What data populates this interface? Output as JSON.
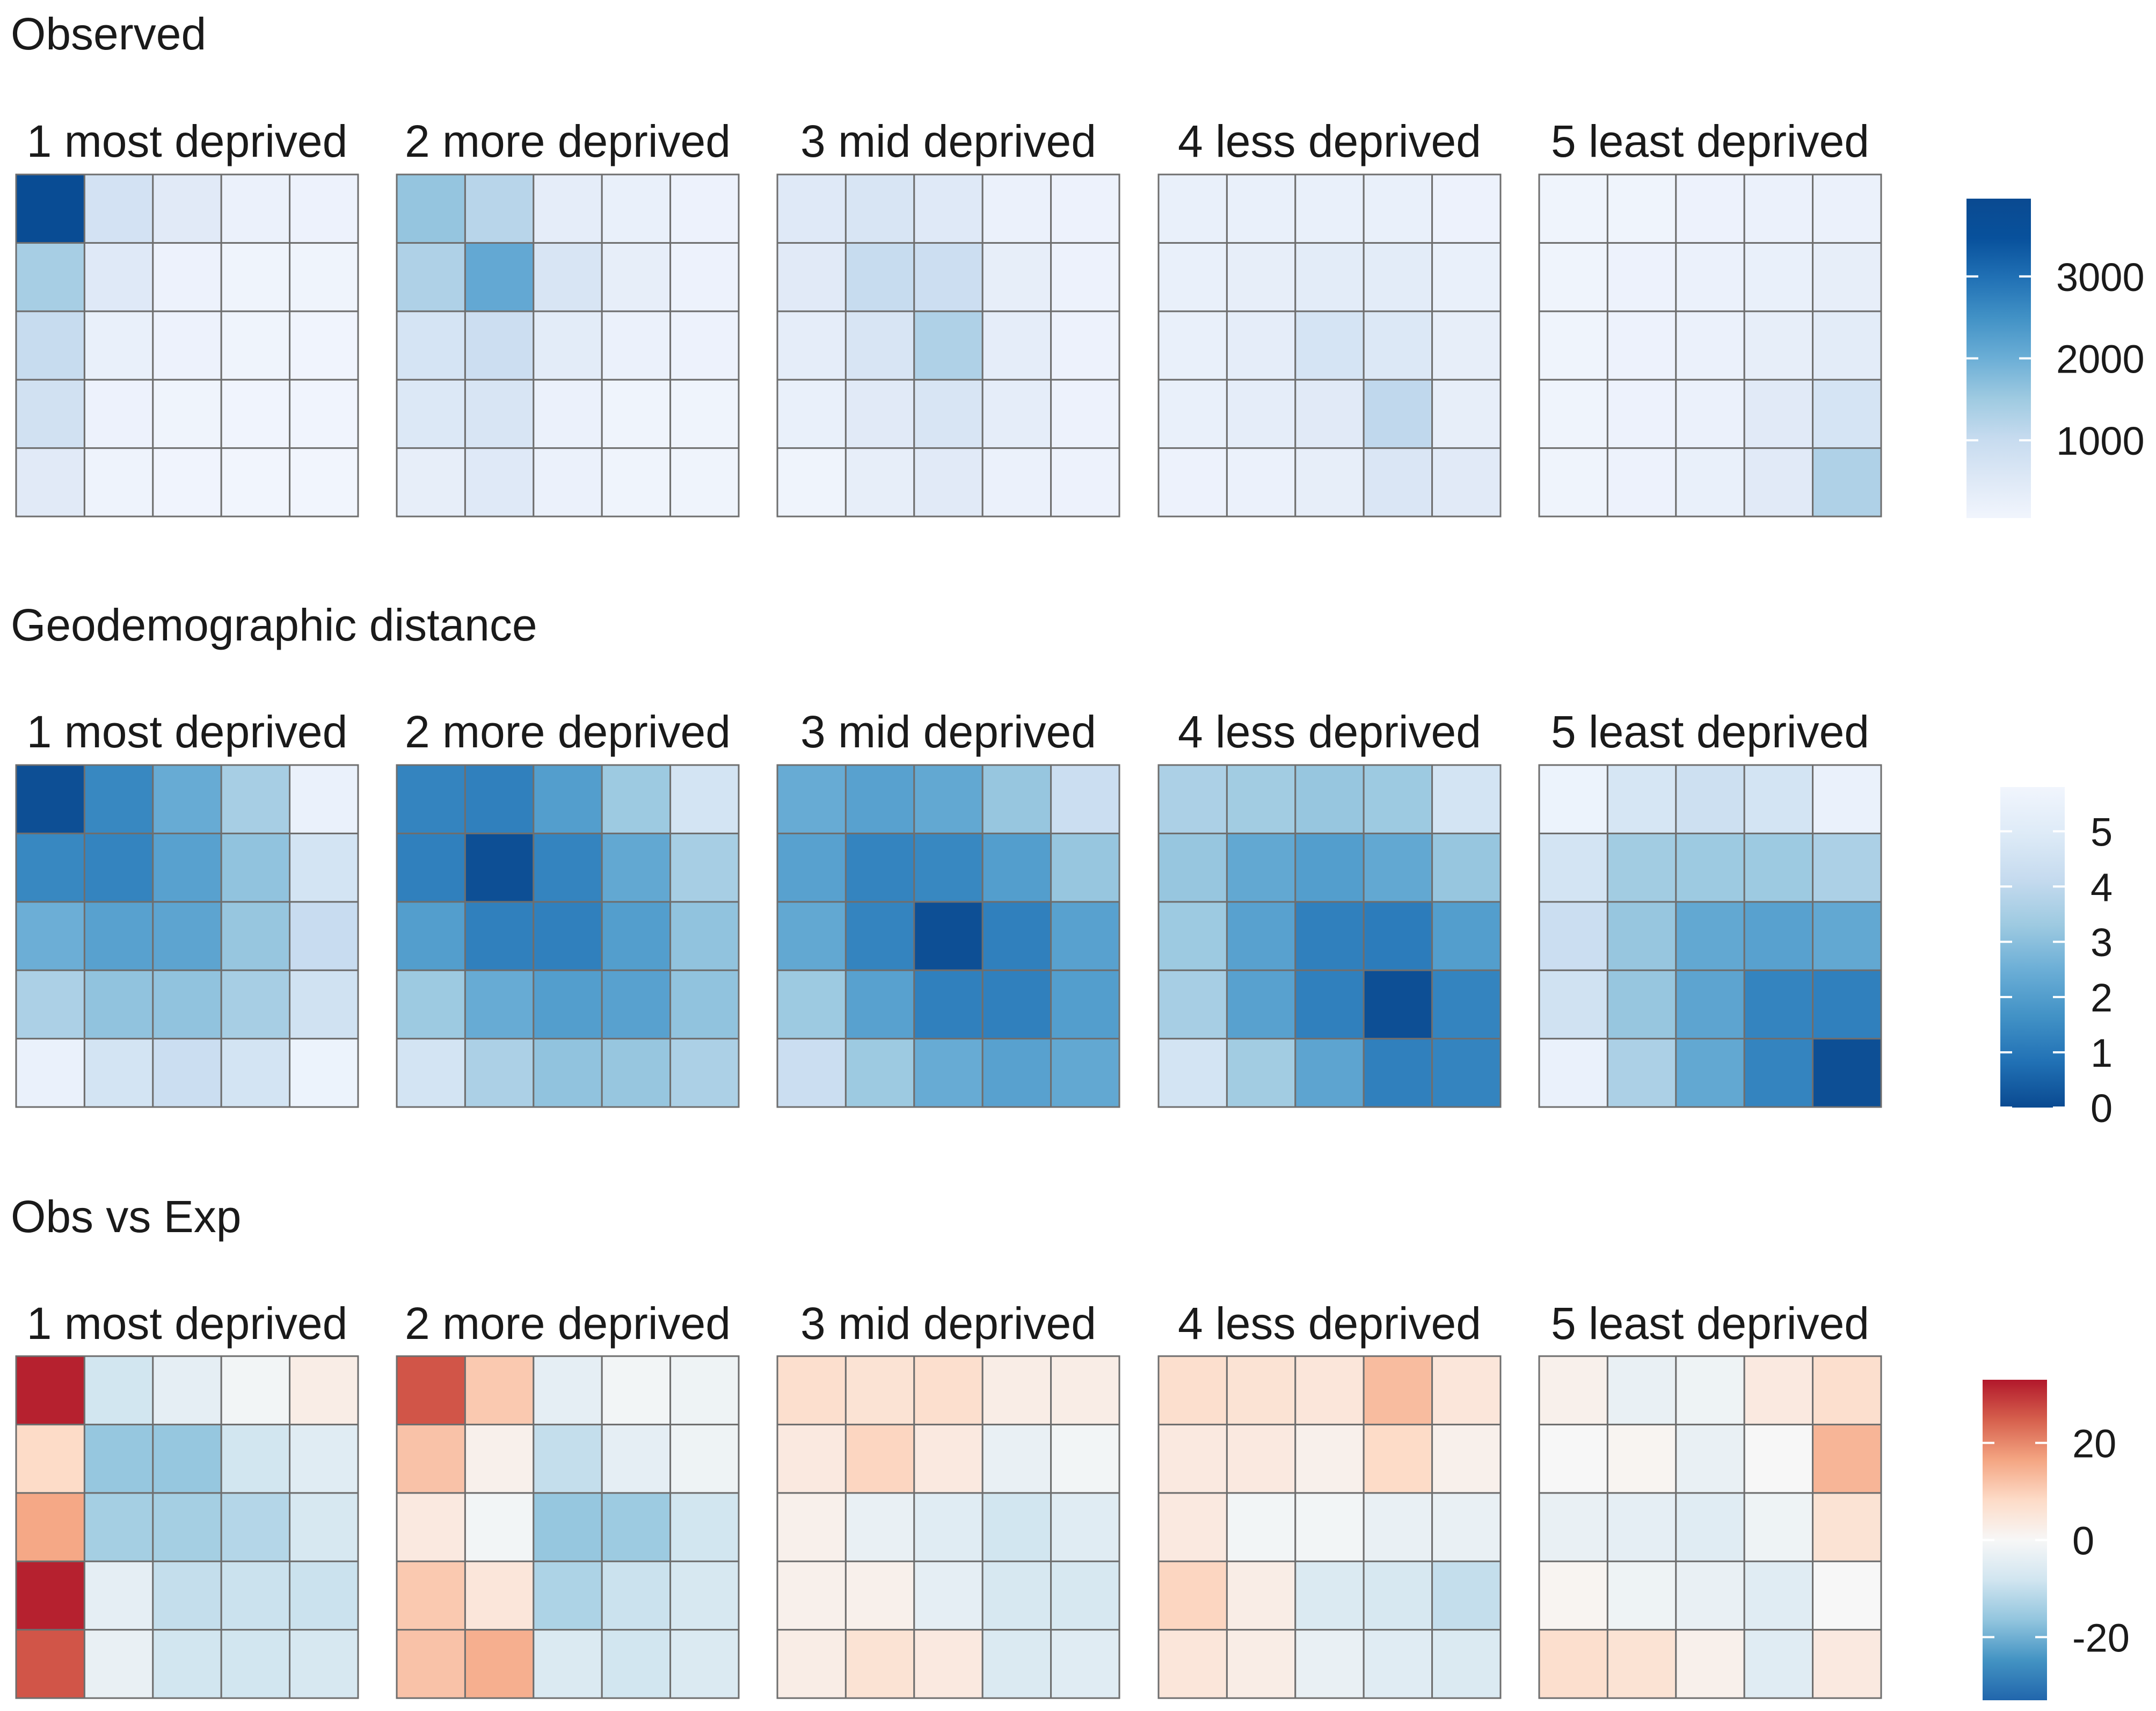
{
  "figure": {
    "rows": [
      {
        "title": "Observed",
        "legend": {
          "ticks": [
            1000,
            2000,
            3000
          ],
          "min": 50,
          "max": 3950,
          "colors": [
            "#F1F5FD",
            "#DDE8F6",
            "#C6DBEF",
            "#9ECAE1",
            "#6BAED6",
            "#4292C6",
            "#2171B5",
            "#08519C",
            "#0A4A91"
          ]
        }
      },
      {
        "title": "Geodemographic distance",
        "legend": {
          "ticks": [
            0,
            1,
            2,
            3,
            4,
            5
          ],
          "min": 0,
          "max": 5.8,
          "colors": [
            "#0A4A91",
            "#2171B5",
            "#4292C6",
            "#6BAED6",
            "#9ECAE1",
            "#C6DBEF",
            "#DEEBF7",
            "#F1F5FD"
          ]
        }
      },
      {
        "title": "Obs vs Exp",
        "legend": {
          "ticks": [
            -20,
            0,
            20
          ],
          "min": -33,
          "max": 33,
          "colors": [
            "#2166AC",
            "#4393C3",
            "#92C5DE",
            "#D1E5F0",
            "#F7F7F7",
            "#FDDBC7",
            "#F4A582",
            "#D6604D",
            "#B2182B"
          ]
        }
      }
    ]
  },
  "chart_data": [
    {
      "type": "heatmap",
      "title": "Observed",
      "facets": [
        "1 most deprived",
        "2 more deprived",
        "3 mid deprived",
        "4 less deprived",
        "5 least deprived"
      ],
      "legend_ticks": [
        1000,
        2000,
        3000
      ],
      "values": [
        [
          [
            450,
            120,
            80,
            60,
            60
          ],
          [
            800,
            150,
            100,
            80,
            70
          ],
          [
            1000,
            250,
            150,
            100,
            70
          ],
          [
            1400,
            500,
            150,
            100,
            100
          ],
          [
            3800,
            750,
            450,
            200,
            150
          ]
        ],
        [
          [
            300,
            500,
            200,
            100,
            100
          ],
          [
            550,
            650,
            200,
            100,
            100
          ],
          [
            700,
            900,
            400,
            200,
            150
          ],
          [
            1300,
            2100,
            650,
            300,
            150
          ],
          [
            1600,
            1200,
            350,
            250,
            150
          ]
        ],
        [
          [
            100,
            300,
            450,
            200,
            150
          ],
          [
            250,
            450,
            650,
            350,
            150
          ],
          [
            350,
            650,
            1300,
            350,
            150
          ],
          [
            450,
            1000,
            900,
            300,
            150
          ],
          [
            500,
            650,
            500,
            200,
            150
          ]
        ],
        [
          [
            150,
            200,
            300,
            600,
            450
          ],
          [
            250,
            350,
            450,
            1100,
            300
          ],
          [
            250,
            350,
            700,
            550,
            300
          ],
          [
            250,
            300,
            400,
            400,
            250
          ],
          [
            250,
            250,
            250,
            250,
            150
          ]
        ],
        [
          [
            100,
            150,
            250,
            450,
            1300
          ],
          [
            100,
            150,
            200,
            450,
            700
          ],
          [
            100,
            150,
            200,
            300,
            400
          ],
          [
            100,
            150,
            200,
            250,
            300
          ],
          [
            100,
            100,
            150,
            200,
            200
          ]
        ]
      ]
    },
    {
      "type": "heatmap",
      "title": "Geodemographic distance",
      "facets": [
        "1 most deprived",
        "2 more deprived",
        "3 mid deprived",
        "4 less deprived",
        "5 least deprived"
      ],
      "legend_ticks": [
        0,
        1,
        2,
        3,
        4,
        5
      ],
      "values": [
        [
          [
            5.5,
            4.6,
            4.3,
            4.6,
            5.6
          ],
          [
            3.6,
            3.1,
            3.1,
            3.5,
            4.5
          ],
          [
            2.5,
            2.1,
            2.2,
            3.2,
            4.2
          ],
          [
            1.4,
            1.3,
            2.1,
            3.1,
            4.6
          ],
          [
            0.1,
            1.4,
            2.4,
            3.5,
            5.5
          ]
        ],
        [
          [
            4.6,
            3.6,
            3.1,
            3.2,
            3.6
          ],
          [
            3.3,
            2.4,
            2.0,
            2.1,
            3.1
          ],
          [
            2.0,
            1.2,
            1.2,
            2.0,
            3.1
          ],
          [
            1.2,
            0.1,
            1.3,
            2.3,
            3.5
          ],
          [
            1.3,
            1.2,
            2.0,
            3.3,
            4.6
          ]
        ],
        [
          [
            4.3,
            3.3,
            2.4,
            2.1,
            2.3
          ],
          [
            3.3,
            2.1,
            1.2,
            1.2,
            2.0
          ],
          [
            2.3,
            1.3,
            0.1,
            1.2,
            2.1
          ],
          [
            2.1,
            1.3,
            1.4,
            2.0,
            3.2
          ],
          [
            2.4,
            2.1,
            2.3,
            3.2,
            4.3
          ]
        ],
        [
          [
            4.6,
            3.4,
            2.2,
            1.2,
            1.3
          ],
          [
            3.5,
            2.1,
            1.2,
            0.1,
            1.3
          ],
          [
            3.3,
            2.1,
            1.2,
            1.1,
            2.0
          ],
          [
            3.2,
            2.3,
            2.0,
            2.3,
            3.2
          ],
          [
            3.6,
            3.4,
            3.2,
            3.3,
            4.6
          ]
        ],
        [
          [
            5.5,
            3.6,
            2.3,
            1.3,
            0.1
          ],
          [
            4.5,
            3.2,
            2.2,
            1.3,
            1.2
          ],
          [
            4.3,
            3.2,
            2.3,
            2.1,
            2.3
          ],
          [
            4.6,
            3.4,
            3.3,
            3.3,
            3.6
          ],
          [
            5.6,
            4.7,
            4.4,
            4.6,
            5.5
          ]
        ]
      ]
    },
    {
      "type": "heatmap",
      "title": "Obs vs Exp",
      "facets": [
        "1 most deprived",
        "2 more deprived",
        "3 mid deprived",
        "4 less deprived",
        "5 least deprived"
      ],
      "legend_ticks": [
        -20,
        0,
        20
      ],
      "values": [
        [
          [
            26,
            -3,
            -8,
            -8,
            -7
          ],
          [
            32,
            -4,
            -10,
            -9,
            -9
          ],
          [
            16,
            -14,
            -14,
            -12,
            -7
          ],
          [
            8,
            -16,
            -16,
            -8,
            -5
          ],
          [
            32,
            -8,
            -4,
            -1,
            3
          ]
        ],
        [
          [
            12,
            15,
            -6,
            -8,
            -6
          ],
          [
            11,
            5,
            -13,
            -9,
            -7
          ],
          [
            4,
            -1,
            -16,
            -15,
            -8
          ],
          [
            12,
            2,
            -10,
            -4,
            -2
          ],
          [
            26,
            11,
            -4,
            -1,
            -2
          ]
        ],
        [
          [
            3,
            6,
            4,
            -6,
            -5
          ],
          [
            2,
            2,
            -4,
            -7,
            -7
          ],
          [
            2,
            -3,
            -5,
            -8,
            -5
          ],
          [
            4,
            9,
            4,
            -3,
            -1
          ],
          [
            7,
            6,
            7,
            3,
            3
          ]
        ],
        [
          [
            5,
            3,
            -3,
            -5,
            -6
          ],
          [
            9,
            3,
            -6,
            -7,
            -10
          ],
          [
            4,
            -1,
            -1,
            -3,
            -3
          ],
          [
            4,
            4,
            2,
            8,
            2
          ],
          [
            7,
            6,
            5,
            13,
            5
          ]
        ],
        [
          [
            7,
            6,
            2,
            -5,
            4
          ],
          [
            1,
            -2,
            -3,
            -5,
            0
          ],
          [
            -3,
            -4,
            -5,
            -2,
            6
          ],
          [
            0,
            1,
            -3,
            0,
            14
          ],
          [
            2,
            -3,
            -2,
            4,
            7
          ]
        ]
      ]
    }
  ]
}
